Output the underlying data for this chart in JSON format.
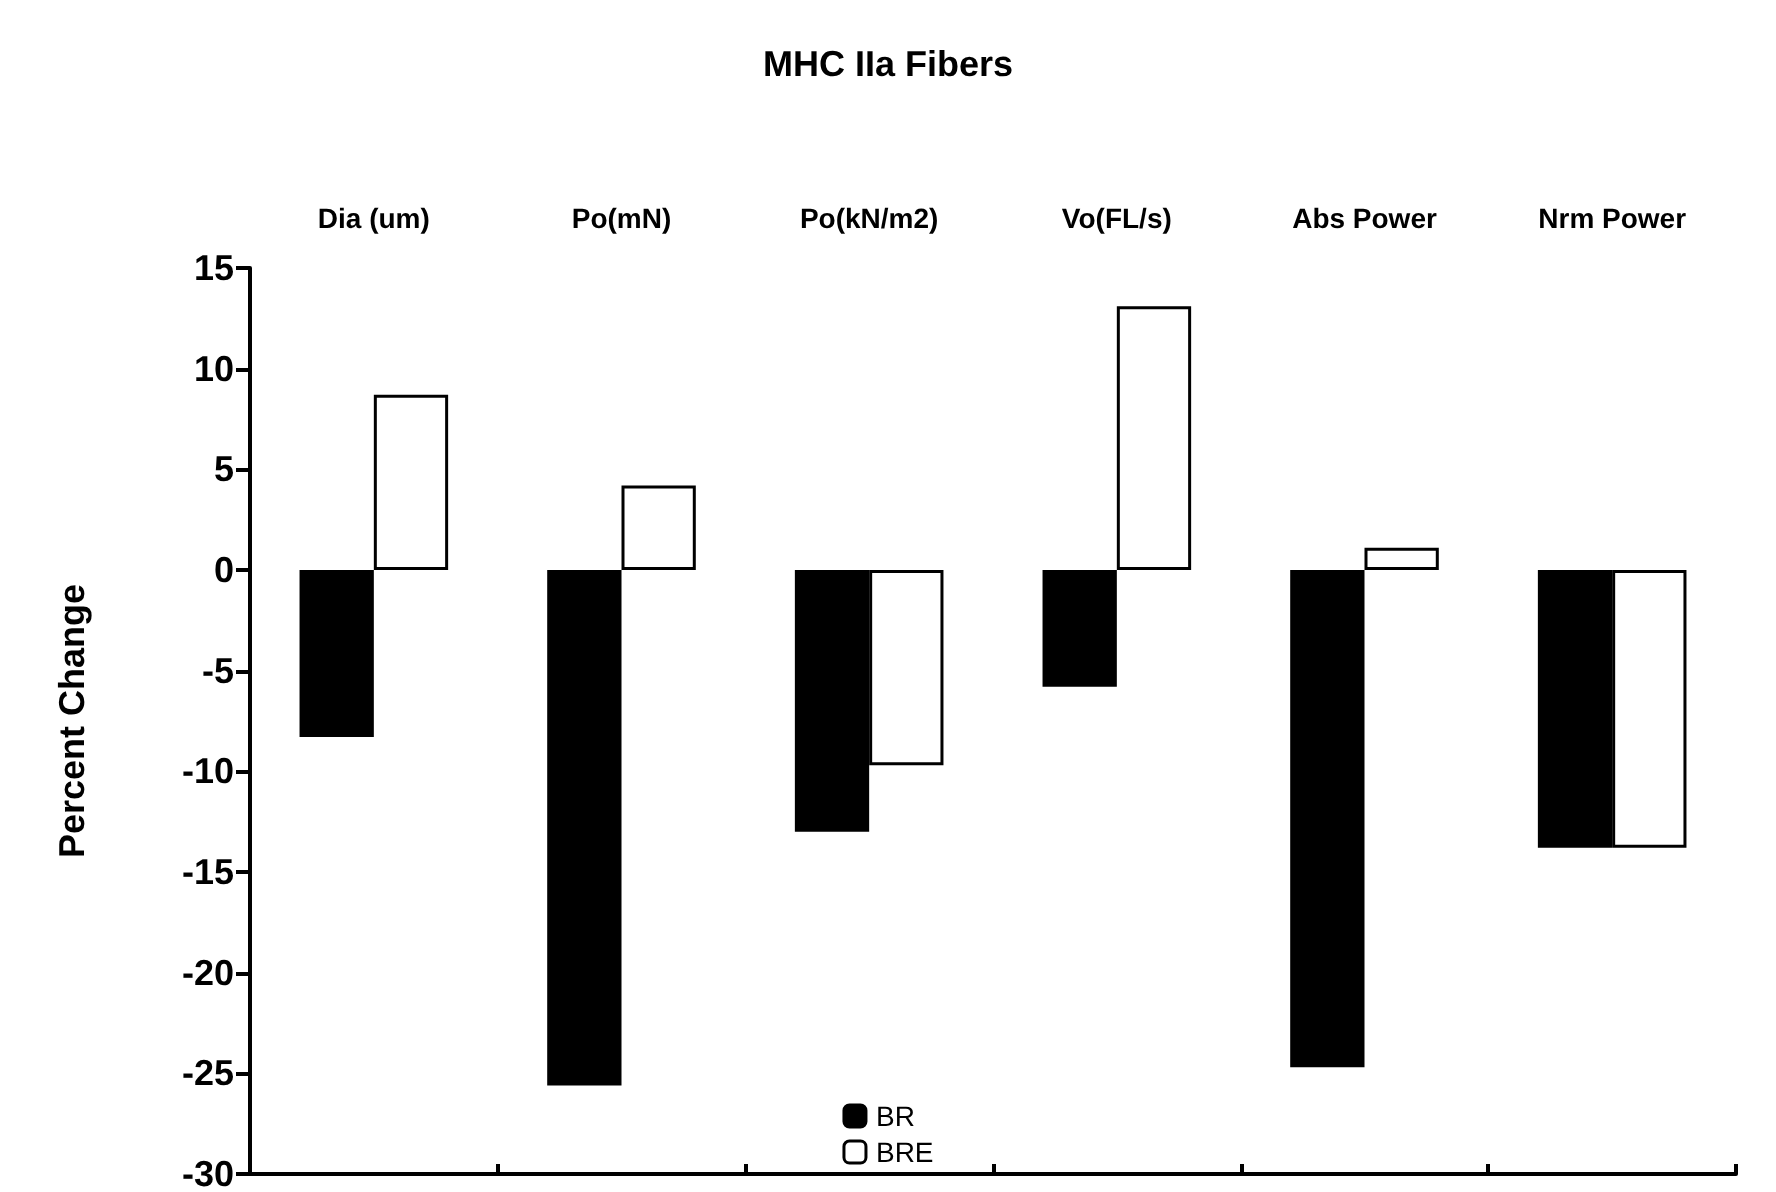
{
  "chart_data": {
    "type": "bar",
    "title": "MHC IIa Fibers",
    "ylabel": "Percent Change",
    "categories": [
      "Dia (um)",
      "Po(mN)",
      "Po(kN/m2)",
      "Vo(FL/s)",
      "Abs Power",
      "Nrm Power"
    ],
    "series": [
      {
        "name": "BR",
        "color": "#000000",
        "values": [
          -8.3,
          -25.6,
          -13.0,
          -5.8,
          -24.7,
          -13.8
        ]
      },
      {
        "name": "BRE",
        "color": "#ffffff",
        "values": [
          8.7,
          4.2,
          -9.7,
          13.1,
          1.1,
          -13.8
        ]
      }
    ],
    "ylim": [
      -30,
      15
    ],
    "yticks": [
      -30,
      -25,
      -20,
      -15,
      -10,
      -5,
      0,
      5,
      10,
      15
    ],
    "grid": false,
    "legend": "bottom"
  }
}
